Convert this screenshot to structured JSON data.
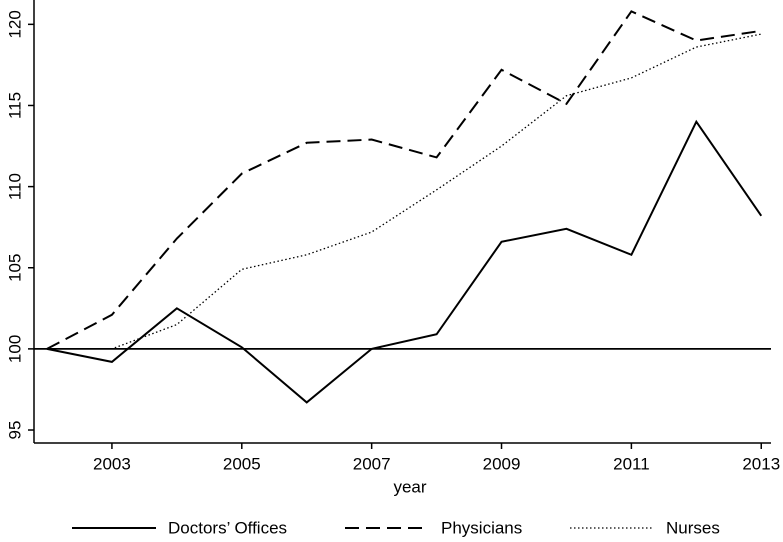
{
  "chart_data": {
    "type": "line",
    "x_label": "year",
    "x": [
      2002,
      2003,
      2004,
      2005,
      2006,
      2007,
      2008,
      2009,
      2010,
      2011,
      2012,
      2013
    ],
    "series": [
      {
        "name": "Doctors’ Offices",
        "color": "#000000",
        "dash": "solid",
        "values": [
          100,
          99.2,
          102.5,
          100.1,
          96.7,
          100,
          100.9,
          106.6,
          107.4,
          105.8,
          114,
          108.2
        ]
      },
      {
        "name": "Physicians",
        "color": "#000000",
        "dash": "dashed",
        "values": [
          100,
          102.1,
          106.8,
          110.8,
          112.7,
          112.9,
          111.8,
          117.2,
          115.1,
          120.8,
          119,
          119.6
        ]
      },
      {
        "name": "Nurses",
        "color": "#000000",
        "dash": "dotted",
        "values": [
          100,
          100,
          101.5,
          104.9,
          105.8,
          107.2,
          109.8,
          112.5,
          115.6,
          116.7,
          118.6,
          119.4
        ]
      }
    ],
    "reference_line": 100,
    "xlim": [
      2001.8,
      2013.15
    ],
    "xticks": [
      2003,
      2005,
      2007,
      2009,
      2011,
      2013
    ],
    "ylim": [
      94.2,
      121.5
    ],
    "yticks": [
      95,
      100,
      105,
      110,
      115,
      120
    ],
    "grid": false,
    "legend": "bottom"
  }
}
